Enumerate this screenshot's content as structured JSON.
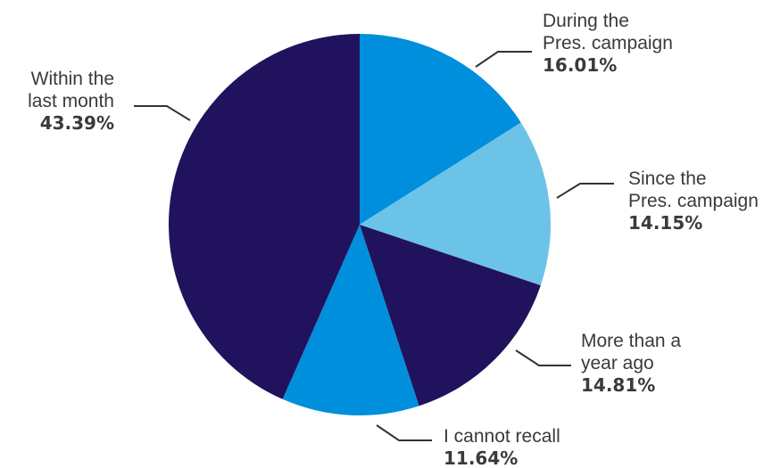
{
  "chart_data": {
    "type": "pie",
    "title": "",
    "slices": [
      {
        "label": [
          "During the",
          "Pres. campaign"
        ],
        "value": 16.01,
        "value_text": "16.01%",
        "color": "#008fdc"
      },
      {
        "label": [
          "Since the",
          "Pres. campaign"
        ],
        "value": 14.15,
        "value_text": "14.15%",
        "color": "#6cc3e8"
      },
      {
        "label": [
          "More than a",
          "year ago"
        ],
        "value": 14.81,
        "value_text": "14.81%",
        "color": "#21125e"
      },
      {
        "label": [
          "I cannot recall"
        ],
        "value": 11.64,
        "value_text": "11.64%",
        "color": "#008fdc"
      },
      {
        "label": [
          "Within the",
          "last month"
        ],
        "value": 43.39,
        "value_text": "43.39%",
        "color": "#21125e"
      }
    ],
    "start": "12 o'clock",
    "direction": "clockwise",
    "legend": "none",
    "labels": "outside with leader lines"
  }
}
